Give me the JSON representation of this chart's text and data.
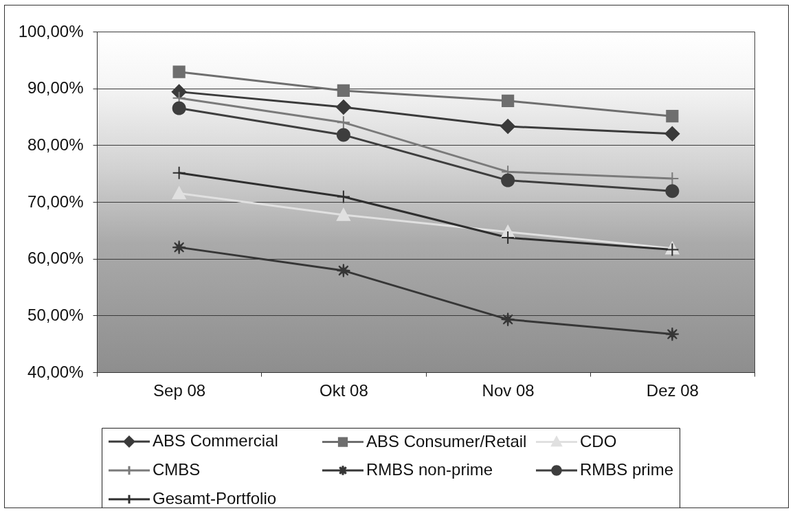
{
  "chart_data": {
    "type": "line",
    "categories": [
      "Sep 08",
      "Okt 08",
      "Nov 08",
      "Dez 08"
    ],
    "ylim": [
      40,
      100
    ],
    "yticks": [
      {
        "value": 40,
        "label": "40,00%"
      },
      {
        "value": 50,
        "label": "50,00%"
      },
      {
        "value": 60,
        "label": "60,00%"
      },
      {
        "value": 70,
        "label": "70,00%"
      },
      {
        "value": 80,
        "label": "80,00%"
      },
      {
        "value": 90,
        "label": "90,00%"
      },
      {
        "value": 100,
        "label": "100,00%"
      }
    ],
    "grid": "y",
    "legend": "bottom",
    "series": [
      {
        "name": "ABS Commercial",
        "color": "#3a3a3a",
        "marker": "diamond",
        "values": [
          89.4,
          86.7,
          83.3,
          82.0
        ]
      },
      {
        "name": "ABS Consumer/Retail",
        "color": "#6e6e6e",
        "marker": "square",
        "values": [
          92.9,
          89.6,
          87.8,
          85.1
        ]
      },
      {
        "name": "CDO",
        "color": "#e0e0e0",
        "marker": "triangle",
        "values": [
          71.5,
          67.7,
          64.7,
          61.8
        ]
      },
      {
        "name": "CMBS",
        "color": "#7a7a7a",
        "marker": "cross",
        "values": [
          88.3,
          84.0,
          75.3,
          74.1
        ]
      },
      {
        "name": "RMBS non-prime",
        "color": "#363636",
        "marker": "star",
        "values": [
          62.0,
          57.9,
          49.3,
          46.7
        ]
      },
      {
        "name": "RMBS prime",
        "color": "#3e3e3e",
        "marker": "circle",
        "values": [
          86.5,
          81.8,
          73.8,
          71.9
        ]
      },
      {
        "name": "Gesamt-Portfolio",
        "color": "#2e2e2e",
        "marker": "cross",
        "values": [
          75.1,
          70.9,
          63.7,
          61.6
        ]
      }
    ]
  }
}
